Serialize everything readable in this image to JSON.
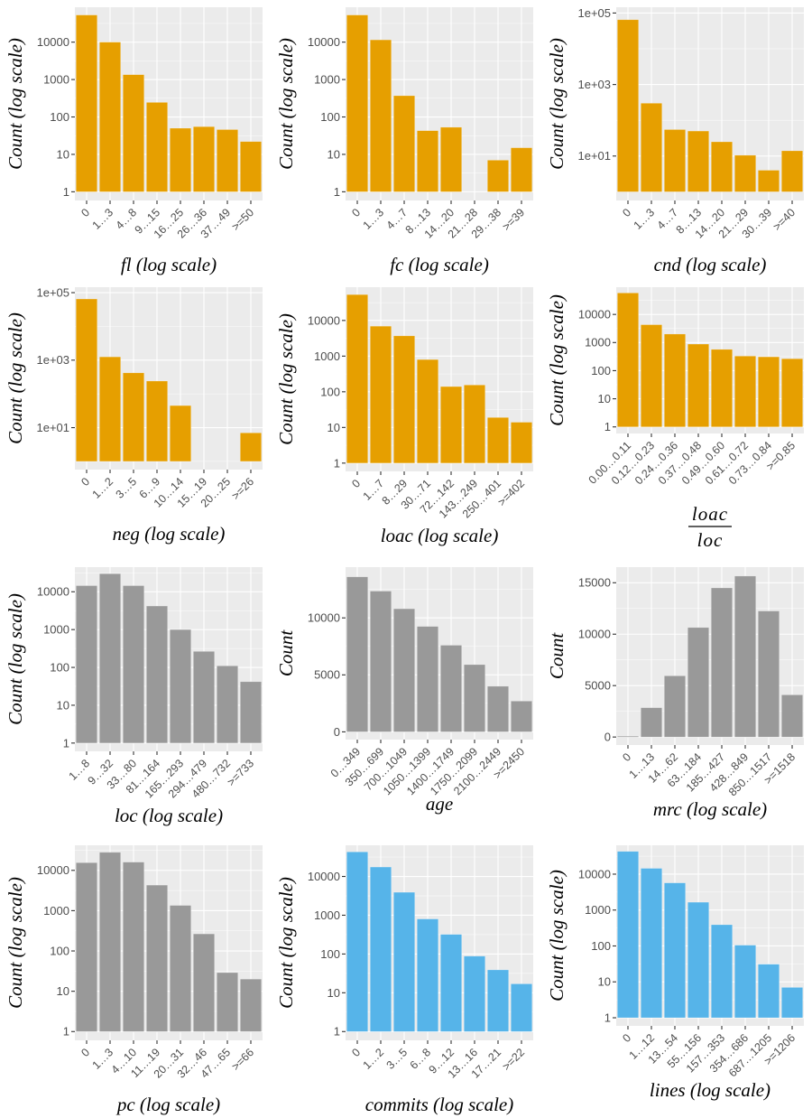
{
  "colors": {
    "orange": "#e69f00",
    "grey": "#999999",
    "blue": "#56b4e9",
    "panel_bg": "#ebebeb"
  },
  "chart_data": [
    {
      "type": "bar",
      "title": "",
      "xlabel": "fl (log scale)",
      "ylabel": "Count (log scale)",
      "yscale": "log",
      "ylim": [
        1,
        60000
      ],
      "yticks": [
        1,
        10,
        100,
        1000,
        10000
      ],
      "ytick_labels": [
        "1",
        "10",
        "100",
        "1000",
        "10000"
      ],
      "categories": [
        "0",
        "1…3",
        "4…8",
        "9…15",
        "16…25",
        "26…36",
        "37…49",
        ">=50"
      ],
      "values": [
        53000,
        10000,
        1350,
        245,
        50,
        55,
        46,
        22
      ],
      "color": "orange",
      "grid": true
    },
    {
      "type": "bar",
      "title": "",
      "xlabel": "fc (log scale)",
      "ylabel": "Count (log scale)",
      "yscale": "log",
      "ylim": [
        1,
        60000
      ],
      "yticks": [
        1,
        10,
        100,
        1000,
        10000
      ],
      "ytick_labels": [
        "1",
        "10",
        "100",
        "1000",
        "10000"
      ],
      "categories": [
        "0",
        "1…3",
        "4…7",
        "8…13",
        "14…20",
        "21…28",
        "29…38",
        ">=39"
      ],
      "values": [
        53000,
        11500,
        370,
        43,
        53,
        0,
        7,
        15
      ],
      "color": "orange",
      "grid": true
    },
    {
      "type": "bar",
      "title": "",
      "xlabel": "cnd (log scale)",
      "ylabel": "Count (log scale)",
      "yscale": "log",
      "ylim": [
        1,
        100000
      ],
      "yticks": [
        10,
        1000,
        100000
      ],
      "ytick_labels": [
        "1e+01",
        "1e+03",
        "1e+05"
      ],
      "categories": [
        "0",
        "1…3",
        "4…7",
        "8…13",
        "14…20",
        "21…29",
        "30…39",
        ">=40"
      ],
      "values": [
        65000,
        300,
        55,
        50,
        25,
        10.5,
        4,
        14
      ],
      "color": "orange",
      "grid": true
    },
    {
      "type": "bar",
      "title": "",
      "xlabel": "neg (log scale)",
      "ylabel": "Count (log scale)",
      "yscale": "log",
      "ylim": [
        1,
        100000
      ],
      "yticks": [
        10,
        1000,
        100000
      ],
      "ytick_labels": [
        "1e+01",
        "1e+03",
        "1e+05"
      ],
      "categories": [
        "0",
        "1…2",
        "3…5",
        "6…9",
        "10…14",
        "15…19",
        "20…25",
        ">=26"
      ],
      "values": [
        65000,
        1250,
        420,
        240,
        45,
        0,
        0,
        7
      ],
      "color": "orange",
      "grid": true
    },
    {
      "type": "bar",
      "title": "",
      "xlabel": "loac (log scale)",
      "ylabel": "Count (log scale)",
      "yscale": "log",
      "ylim": [
        1,
        60000
      ],
      "yticks": [
        1,
        10,
        100,
        1000,
        10000
      ],
      "ytick_labels": [
        "1",
        "10",
        "100",
        "1000",
        "10000"
      ],
      "categories": [
        "0",
        "1…7",
        "8…29",
        "30…71",
        "72…142",
        "143…249",
        "250…401",
        ">=402"
      ],
      "values": [
        53000,
        6900,
        3700,
        800,
        140,
        155,
        19,
        14
      ],
      "color": "orange",
      "grid": true
    },
    {
      "type": "bar",
      "title": "",
      "xlabel": "loac / loc",
      "xlabel_numerator": "loac",
      "xlabel_denominator": "loc",
      "ylabel": "Count (log scale)",
      "yscale": "log",
      "ylim": [
        1,
        65000
      ],
      "yticks": [
        1,
        10,
        100,
        1000,
        10000
      ],
      "ytick_labels": [
        "1",
        "10",
        "100",
        "1000",
        "10000"
      ],
      "categories": [
        "0.00…0.11",
        "0.12…0.23",
        "0.24…0.36",
        "0.37…0.48",
        "0.49…0.60",
        "0.61…0.72",
        "0.73…0.84",
        ">=0.85"
      ],
      "values": [
        58000,
        4300,
        2000,
        880,
        570,
        330,
        310,
        265
      ],
      "color": "orange",
      "grid": true
    },
    {
      "type": "bar",
      "title": "",
      "xlabel": "loc (log scale)",
      "ylabel": "Count (log scale)",
      "yscale": "log",
      "ylim": [
        1,
        32000
      ],
      "yticks": [
        1,
        10,
        100,
        1000,
        10000
      ],
      "ytick_labels": [
        "1",
        "10",
        "100",
        "1000",
        "10000"
      ],
      "categories": [
        "1…8",
        "9…32",
        "33…80",
        "81…164",
        "165…293",
        "294…479",
        "480…732",
        ">=733"
      ],
      "values": [
        14500,
        30000,
        14500,
        4200,
        1000,
        265,
        110,
        42
      ],
      "color": "grey",
      "grid": true
    },
    {
      "type": "bar",
      "title": "",
      "xlabel": "age",
      "ylabel": "Count",
      "yscale": "linear",
      "ylim": [
        0,
        14000
      ],
      "yticks": [
        0,
        5000,
        10000
      ],
      "ytick_labels": [
        "0",
        "5000",
        "10000"
      ],
      "categories": [
        "0…349",
        "350…699",
        "700…1049",
        "1050…1399",
        "1400…1749",
        "1750…2099",
        "2100…2449",
        ">=2450"
      ],
      "values": [
        13600,
        12350,
        10800,
        9250,
        7600,
        5900,
        4000,
        2700
      ],
      "color": "grey",
      "grid": true
    },
    {
      "type": "bar",
      "title": "",
      "xlabel": "mrc (log scale)",
      "ylabel": "Count",
      "yscale": "linear",
      "ylim": [
        0,
        16000
      ],
      "yticks": [
        0,
        5000,
        10000,
        15000
      ],
      "ytick_labels": [
        "0",
        "5000",
        "10000",
        "15000"
      ],
      "categories": [
        "0",
        "1…13",
        "14…62",
        "63…184",
        "185…427",
        "428…849",
        "850…1517",
        ">=1518"
      ],
      "values": [
        80,
        2850,
        5950,
        10650,
        14500,
        15650,
        12250,
        4100
      ],
      "color": "grey",
      "grid": true
    },
    {
      "type": "bar",
      "title": "",
      "xlabel": "pc (log scale)",
      "ylabel": "Count (log scale)",
      "yscale": "log",
      "ylim": [
        1,
        30000
      ],
      "yticks": [
        1,
        10,
        100,
        1000,
        10000
      ],
      "ytick_labels": [
        "1",
        "10",
        "100",
        "1000",
        "10000"
      ],
      "categories": [
        "0",
        "1…3",
        "4…10",
        "11…19",
        "20…31",
        "32…46",
        "47…65",
        ">=66"
      ],
      "values": [
        15500,
        28000,
        16000,
        4300,
        1350,
        265,
        29,
        20
      ],
      "color": "grey",
      "grid": true
    },
    {
      "type": "bar",
      "title": "",
      "xlabel": "commits (log scale)",
      "ylabel": "Count (log scale)",
      "yscale": "log",
      "ylim": [
        1,
        45000
      ],
      "yticks": [
        1,
        10,
        100,
        1000,
        10000
      ],
      "ytick_labels": [
        "1",
        "10",
        "100",
        "1000",
        "10000"
      ],
      "categories": [
        "0",
        "1…2",
        "3…5",
        "6…8",
        "9…12",
        "13…16",
        "17…21",
        ">=22"
      ],
      "values": [
        43000,
        17500,
        3900,
        800,
        320,
        88,
        39,
        17
      ],
      "color": "blue",
      "grid": true
    },
    {
      "type": "bar",
      "title": "",
      "xlabel": "lines (log scale)",
      "ylabel": "Count (log scale)",
      "yscale": "log",
      "ylim": [
        1,
        45000
      ],
      "yticks": [
        1,
        10,
        100,
        1000,
        10000
      ],
      "ytick_labels": [
        "1",
        "10",
        "100",
        "1000",
        "10000"
      ],
      "categories": [
        "0",
        "1…12",
        "13…54",
        "55…156",
        "157…353",
        "354…686",
        "687…1205",
        ">=1206"
      ],
      "values": [
        43000,
        14500,
        5700,
        1650,
        390,
        105,
        31,
        7
      ],
      "color": "blue",
      "grid": true
    }
  ]
}
